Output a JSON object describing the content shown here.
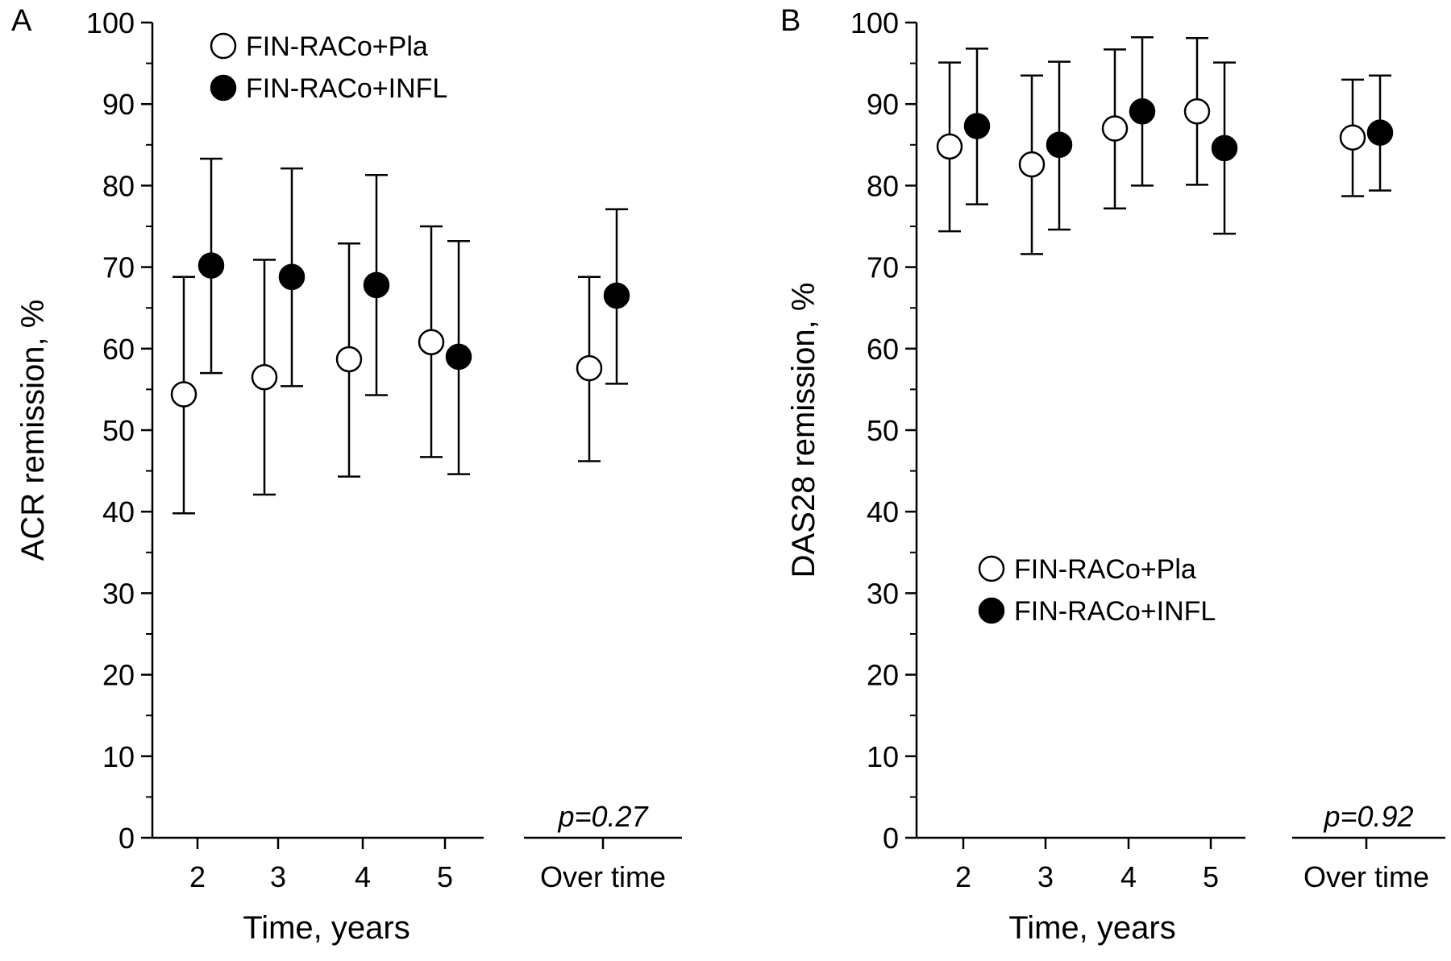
{
  "chart_data": [
    {
      "type": "scatter",
      "panel_label": "A",
      "ylabel": "ACR remission, %",
      "xlabel": "Time, years",
      "categories": [
        "2",
        "3",
        "4",
        "5",
        "Over time"
      ],
      "ylim": [
        0,
        100
      ],
      "yticks": [
        "0",
        "10",
        "20",
        "30",
        "40",
        "50",
        "60",
        "70",
        "80",
        "90",
        "100"
      ],
      "grid": false,
      "legend_position": "top-left",
      "p_value": "p=0.27",
      "series": [
        {
          "name": "FIN-RACo+Pla",
          "marker": "open-circle",
          "values": [
            54.4,
            56.5,
            58.7,
            60.8,
            57.6
          ],
          "lower": [
            39.8,
            42.1,
            44.3,
            46.7,
            46.2
          ],
          "upper": [
            68.8,
            70.9,
            72.9,
            75.0,
            68.8
          ]
        },
        {
          "name": "FIN-RACo+INFL",
          "marker": "filled-circle",
          "values": [
            70.2,
            68.8,
            67.8,
            59.0,
            66.5
          ],
          "lower": [
            57.0,
            55.4,
            54.3,
            44.6,
            55.7
          ],
          "upper": [
            83.3,
            82.1,
            81.3,
            73.2,
            77.1
          ]
        }
      ]
    },
    {
      "type": "scatter",
      "panel_label": "B",
      "ylabel": "DAS28 remission, %",
      "xlabel": "Time, years",
      "categories": [
        "2",
        "3",
        "4",
        "5",
        "Over time"
      ],
      "ylim": [
        0,
        100
      ],
      "yticks": [
        "0",
        "10",
        "20",
        "30",
        "40",
        "50",
        "60",
        "70",
        "80",
        "90",
        "100"
      ],
      "grid": false,
      "legend_position": "center-left",
      "p_value": "p=0.92",
      "series": [
        {
          "name": "FIN-RACo+Pla",
          "marker": "open-circle",
          "values": [
            84.8,
            82.6,
            87.0,
            89.1,
            85.9
          ],
          "lower": [
            74.4,
            71.6,
            77.2,
            80.1,
            78.7
          ],
          "upper": [
            95.1,
            93.5,
            96.7,
            98.1,
            93.0
          ]
        },
        {
          "name": "FIN-RACo+INFL",
          "marker": "filled-circle",
          "values": [
            87.3,
            85.0,
            89.1,
            84.6,
            86.5
          ],
          "lower": [
            77.7,
            74.6,
            80.0,
            74.1,
            79.4
          ],
          "upper": [
            96.8,
            95.2,
            98.2,
            95.1,
            93.5
          ]
        }
      ]
    }
  ]
}
